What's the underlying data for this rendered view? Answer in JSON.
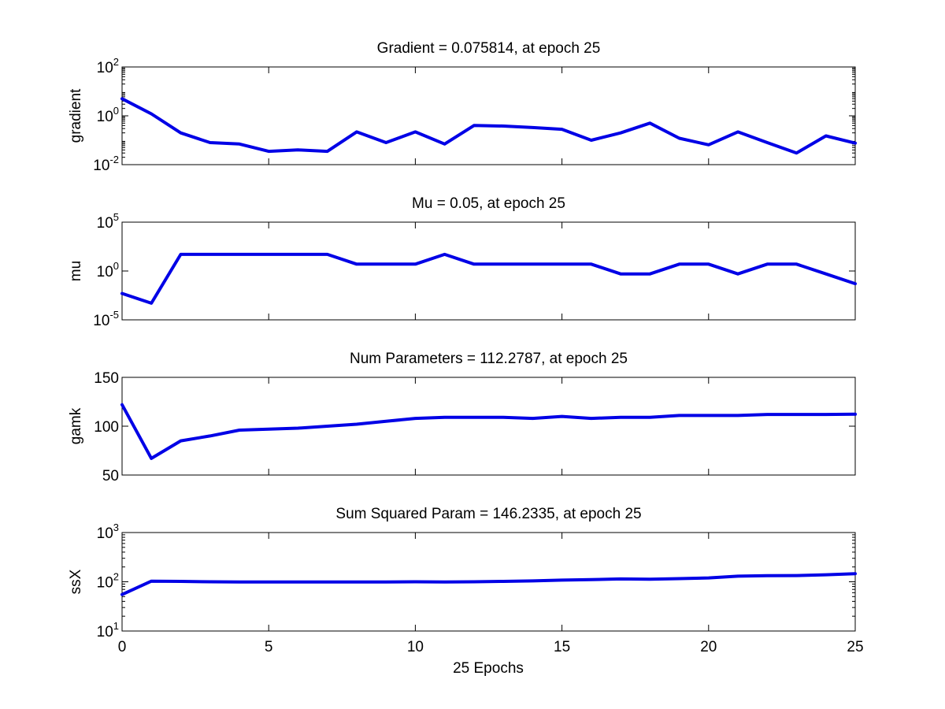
{
  "figure": {
    "xlabel": "25 Epochs",
    "x_tick_labels": [
      "0",
      "5",
      "10",
      "15",
      "20",
      "25"
    ],
    "line_color": "#0000e6"
  },
  "chart_data": [
    {
      "type": "line",
      "title": "Gradient = 0.075814, at epoch 25",
      "ylabel": "gradient",
      "xlabel": "",
      "yscale": "log",
      "xlim": [
        0,
        25
      ],
      "ylim": [
        0.01,
        100
      ],
      "y_ticks": [
        {
          "base": "10",
          "exp": "-2",
          "value": 0.01
        },
        {
          "base": "10",
          "exp": "0",
          "value": 1
        },
        {
          "base": "10",
          "exp": "2",
          "value": 100
        }
      ],
      "series": [
        {
          "x": [
            0,
            1,
            2,
            3,
            4,
            5,
            6,
            7,
            8,
            9,
            10,
            11,
            12,
            13,
            14,
            15,
            16,
            17,
            18,
            19,
            20,
            21,
            22,
            23,
            24,
            25
          ],
          "values": [
            5.0,
            1.2,
            0.2,
            0.08,
            0.07,
            0.035,
            0.04,
            0.035,
            0.22,
            0.08,
            0.22,
            0.07,
            0.4,
            0.38,
            0.33,
            0.28,
            0.1,
            0.2,
            0.5,
            0.12,
            0.065,
            0.22,
            0.08,
            0.03,
            0.15,
            0.075814
          ]
        }
      ]
    },
    {
      "type": "line",
      "title": "Mu = 0.05, at epoch 25",
      "ylabel": "mu",
      "xlabel": "",
      "yscale": "log",
      "xlim": [
        0,
        25
      ],
      "ylim": [
        1e-05,
        100000
      ],
      "y_ticks": [
        {
          "base": "10",
          "exp": "-5",
          "value": 1e-05
        },
        {
          "base": "10",
          "exp": "0",
          "value": 1
        },
        {
          "base": "10",
          "exp": "5",
          "value": 100000
        }
      ],
      "series": [
        {
          "x": [
            0,
            1,
            2,
            3,
            4,
            5,
            6,
            7,
            8,
            9,
            10,
            11,
            12,
            13,
            14,
            15,
            16,
            17,
            18,
            19,
            20,
            21,
            22,
            23,
            24,
            25
          ],
          "values": [
            0.005,
            0.0005,
            50,
            50,
            50,
            50,
            50,
            50,
            5,
            5,
            5,
            50,
            5,
            5,
            5,
            5,
            5,
            0.5,
            0.5,
            5,
            5,
            0.5,
            5,
            5,
            0.5,
            0.05
          ]
        }
      ]
    },
    {
      "type": "line",
      "title": "Num Parameters = 112.2787, at epoch 25",
      "ylabel": "gamk",
      "xlabel": "",
      "yscale": "linear",
      "xlim": [
        0,
        25
      ],
      "ylim": [
        50,
        150
      ],
      "y_ticks": [
        {
          "base": "50",
          "exp": "",
          "value": 50
        },
        {
          "base": "100",
          "exp": "",
          "value": 100
        },
        {
          "base": "150",
          "exp": "",
          "value": 150
        }
      ],
      "series": [
        {
          "x": [
            0,
            1,
            2,
            3,
            4,
            5,
            6,
            7,
            8,
            9,
            10,
            11,
            12,
            13,
            14,
            15,
            16,
            17,
            18,
            19,
            20,
            21,
            22,
            23,
            24,
            25
          ],
          "values": [
            122,
            67,
            85,
            90,
            96,
            97,
            98,
            100,
            102,
            105,
            108,
            109,
            109,
            109,
            108,
            110,
            108,
            109,
            109,
            111,
            111,
            111,
            112,
            112,
            112,
            112.2787
          ]
        }
      ]
    },
    {
      "type": "line",
      "title": "Sum Squared Param = 146.2335, at epoch 25",
      "ylabel": "ssX",
      "xlabel": "25 Epochs",
      "yscale": "log",
      "xlim": [
        0,
        25
      ],
      "ylim": [
        10,
        1000
      ],
      "y_ticks": [
        {
          "base": "10",
          "exp": "1",
          "value": 10
        },
        {
          "base": "10",
          "exp": "2",
          "value": 100
        },
        {
          "base": "10",
          "exp": "3",
          "value": 1000
        }
      ],
      "series": [
        {
          "x": [
            0,
            1,
            2,
            3,
            4,
            5,
            6,
            7,
            8,
            9,
            10,
            11,
            12,
            13,
            14,
            15,
            16,
            17,
            18,
            19,
            20,
            21,
            22,
            23,
            24,
            25
          ],
          "values": [
            55,
            103,
            102,
            100,
            99,
            99,
            99,
            99,
            99,
            99,
            100,
            99,
            100,
            102,
            104,
            108,
            111,
            114,
            113,
            116,
            120,
            130,
            133,
            134,
            139,
            146.2335
          ]
        }
      ]
    }
  ]
}
